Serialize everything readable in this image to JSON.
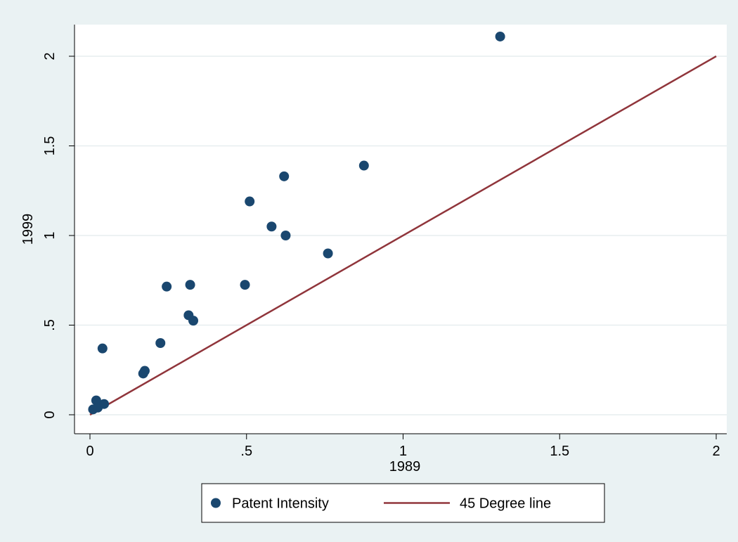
{
  "chart_data": {
    "type": "scatter",
    "xlabel": "1989",
    "ylabel": "1999",
    "xlim": [
      0,
      2
    ],
    "ylim": [
      0,
      2
    ],
    "x_ticks": [
      0,
      0.5,
      1,
      1.5,
      2
    ],
    "x_tick_labels": [
      "0",
      ".5",
      "1",
      "1.5",
      "2"
    ],
    "y_ticks": [
      0,
      0.5,
      1,
      1.5,
      2
    ],
    "y_tick_labels": [
      "0",
      ".5",
      "1",
      "1.5",
      "2"
    ],
    "grid": "horizontal",
    "legend": "bottom",
    "series": [
      {
        "name": "Patent Intensity",
        "kind": "scatter",
        "color": "#1a476f",
        "points": [
          {
            "x": 0.01,
            "y": 0.03
          },
          {
            "x": 0.02,
            "y": 0.08
          },
          {
            "x": 0.025,
            "y": 0.04
          },
          {
            "x": 0.04,
            "y": 0.37
          },
          {
            "x": 0.045,
            "y": 0.06
          },
          {
            "x": 0.17,
            "y": 0.23
          },
          {
            "x": 0.175,
            "y": 0.245
          },
          {
            "x": 0.225,
            "y": 0.4
          },
          {
            "x": 0.245,
            "y": 0.715
          },
          {
            "x": 0.315,
            "y": 0.555
          },
          {
            "x": 0.32,
            "y": 0.725
          },
          {
            "x": 0.33,
            "y": 0.525
          },
          {
            "x": 0.495,
            "y": 0.725
          },
          {
            "x": 0.51,
            "y": 1.19
          },
          {
            "x": 0.58,
            "y": 1.05
          },
          {
            "x": 0.62,
            "y": 1.33
          },
          {
            "x": 0.625,
            "y": 1.0
          },
          {
            "x": 0.76,
            "y": 0.9
          },
          {
            "x": 0.875,
            "y": 1.39
          },
          {
            "x": 1.31,
            "y": 2.11
          }
        ]
      },
      {
        "name": "45 Degree line",
        "kind": "line",
        "color": "#90353b",
        "points": [
          {
            "x": 0,
            "y": 0
          },
          {
            "x": 2,
            "y": 2
          }
        ]
      }
    ]
  }
}
